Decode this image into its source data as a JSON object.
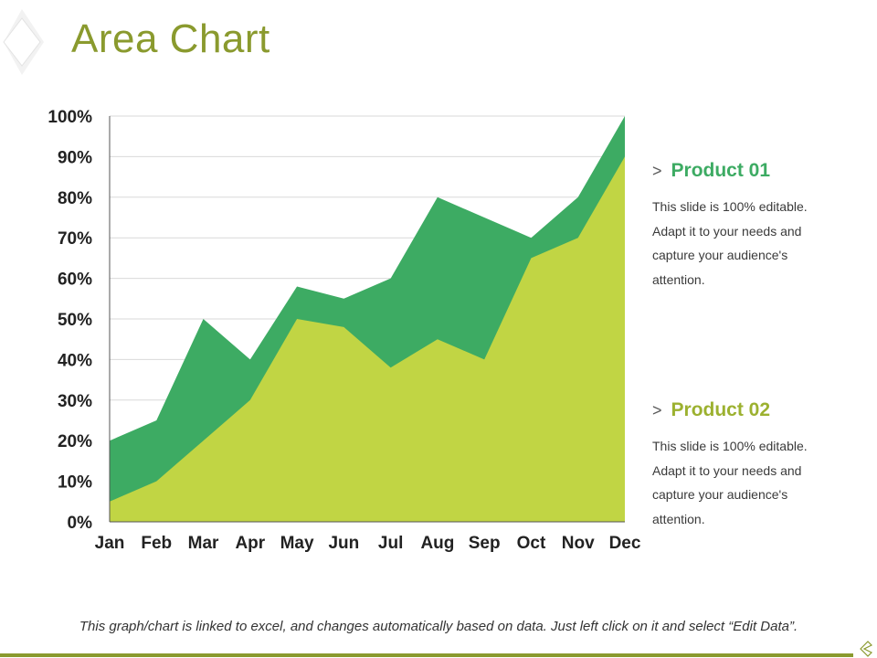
{
  "title": "Area Chart",
  "colors": {
    "accent": "#8a9a2e",
    "product01": "#3dab63",
    "product02": "#c1d544"
  },
  "legend": [
    {
      "arrow": ">",
      "name": "Product 01",
      "desc": "This slide is 100% editable. Adapt it to your needs and capture your audience's attention."
    },
    {
      "arrow": ">",
      "name": "Product 02",
      "desc": "This slide is 100% editable. Adapt it to your needs and capture your audience's attention."
    }
  ],
  "footer": "This graph/chart is linked to excel, and changes automatically based on data. Just left click on it and select “Edit Data”.",
  "chart_data": {
    "type": "area",
    "title": "",
    "xlabel": "",
    "ylabel": "",
    "categories": [
      "Jan",
      "Feb",
      "Mar",
      "Apr",
      "May",
      "Jun",
      "Jul",
      "Aug",
      "Sep",
      "Oct",
      "Nov",
      "Dec"
    ],
    "series": [
      {
        "name": "Product 01",
        "color": "#3dab63",
        "values": [
          20,
          25,
          50,
          40,
          58,
          55,
          60,
          80,
          75,
          70,
          80,
          100
        ]
      },
      {
        "name": "Product 02",
        "color": "#c1d544",
        "values": [
          5,
          10,
          20,
          30,
          50,
          48,
          38,
          45,
          40,
          65,
          70,
          90
        ]
      }
    ],
    "ylim": [
      0,
      100
    ],
    "yticks": [
      "0%",
      "10%",
      "20%",
      "30%",
      "40%",
      "50%",
      "60%",
      "70%",
      "80%",
      "90%",
      "100%"
    ],
    "grid": true,
    "legend_position": "right"
  }
}
